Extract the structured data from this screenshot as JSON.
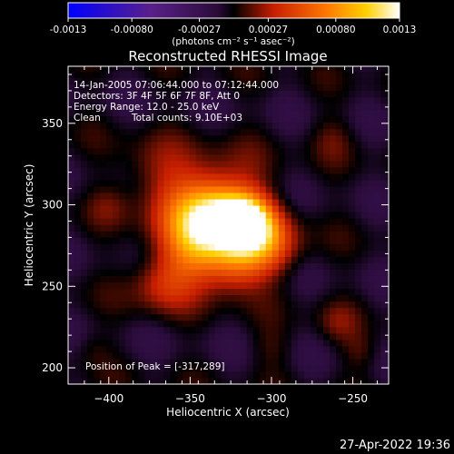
{
  "colorbar": {
    "ticks": [
      "-0.0013",
      "-0.00080",
      "-0.00027",
      "0.00027",
      "0.00080",
      "0.0013"
    ],
    "unit_label": "(photons cm⁻² s⁻¹ asec⁻²)",
    "range": [
      -0.0013,
      0.0013
    ],
    "tick_values": [
      -0.0013,
      -0.0008,
      -0.00027,
      0.00027,
      0.0008,
      0.0013
    ]
  },
  "image_info": {
    "time_range": "14-Jan-2005 07:06:44.000 to 07:12:44.000",
    "detectors": "Detectors: 3F 4F 5F 6F 7F 8F, Att 0",
    "energy_range": "Energy Range: 12.0 - 25.0 keV",
    "method": "Clean",
    "total_counts": "Total counts: 9.10E+03",
    "peak_position": "Position of Peak = [-317,289]"
  },
  "footer": {
    "timestamp": "27-Apr-2022 19:36"
  },
  "chart_data": {
    "type": "heatmap",
    "title": "Reconstructed RHESSI Image",
    "xlabel": "Heliocentric X (arcsec)",
    "ylabel": "Heliocentric Y (arcsec)",
    "xlim": [
      -425,
      -228
    ],
    "ylim": [
      190,
      385
    ],
    "x_ticks": [
      -400,
      -350,
      -300,
      -250
    ],
    "y_ticks": [
      200,
      250,
      300,
      350
    ],
    "x_tick_labels": [
      "−400",
      "−350",
      "−300",
      "−250"
    ],
    "y_tick_labels": [
      "200",
      "250",
      "300",
      "350"
    ],
    "peak": [
      -317,
      289
    ],
    "colors": {
      "colormap": [
        "#0000ff",
        "#5a1f8a",
        "#2a0c3a",
        "#000000",
        "#c81e00",
        "#ff7800",
        "#ffd000",
        "#ffffff"
      ],
      "background": "#000000"
    }
  }
}
